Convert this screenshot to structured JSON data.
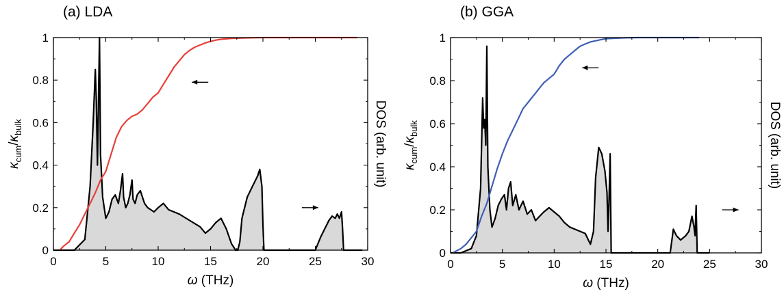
{
  "chart_data": [
    {
      "type": "line",
      "title": "(a) LDA",
      "xlabel": {
        "symbol": "ω",
        "unit": " (THz)"
      },
      "ylabel_left": {
        "k1": "κ",
        "s1": "cum",
        "mid": "/",
        "k2": "κ",
        "s2": "bulk"
      },
      "ylabel_right": "DOS (arb. unit)",
      "xlim": [
        0,
        30
      ],
      "ylim": [
        0,
        1
      ],
      "xticks": [
        "0",
        "5",
        "10",
        "15",
        "20",
        "25",
        "30"
      ],
      "yticks": [
        "0",
        "0.2",
        "0.4",
        "0.6",
        "0.8",
        "1"
      ],
      "grid": false,
      "arrows": [
        {
          "direction": "left",
          "x": 14.0,
          "y": 0.79
        },
        {
          "direction": "right",
          "x": 24.5,
          "y": 0.2
        }
      ],
      "series": [
        {
          "role": "cumulative_thermal_conductivity",
          "color": "#e8403a",
          "x": [
            0.6,
            1.0,
            1.5,
            2.0,
            2.5,
            3.0,
            3.5,
            4.0,
            4.5,
            5.0,
            5.5,
            6.0,
            6.5,
            7.0,
            7.5,
            8.0,
            8.5,
            9.0,
            9.5,
            10.0,
            10.5,
            11.0,
            11.5,
            12.0,
            12.5,
            13.0,
            13.5,
            14.0,
            14.5,
            15.0,
            15.5,
            16.0,
            17.0,
            18.0,
            19.0,
            20.0,
            22.0,
            25.0,
            29.0
          ],
          "y": [
            0.0,
            0.02,
            0.04,
            0.08,
            0.12,
            0.17,
            0.22,
            0.27,
            0.33,
            0.37,
            0.45,
            0.53,
            0.58,
            0.61,
            0.63,
            0.64,
            0.66,
            0.69,
            0.72,
            0.74,
            0.78,
            0.82,
            0.86,
            0.89,
            0.92,
            0.94,
            0.955,
            0.965,
            0.975,
            0.982,
            0.988,
            0.992,
            0.996,
            0.998,
            0.999,
            1.0,
            1.0,
            1.0,
            1.0
          ]
        },
        {
          "role": "phonon_dos",
          "color": "#000000",
          "fill": "#d9d9d9",
          "x": [
            0,
            2.0,
            3.0,
            3.5,
            3.8,
            4.0,
            4.1,
            4.2,
            4.3,
            4.4,
            4.5,
            4.7,
            5.0,
            5.3,
            5.6,
            5.9,
            6.2,
            6.4,
            6.6,
            6.7,
            6.9,
            7.1,
            7.3,
            7.5,
            7.6,
            7.8,
            8.0,
            8.3,
            8.5,
            8.7,
            9.0,
            9.3,
            9.6,
            10.0,
            10.5,
            11.0,
            11.5,
            12.0,
            13.0,
            14.0,
            14.5,
            15.0,
            15.5,
            16.0,
            16.5,
            17.0,
            17.4,
            17.6,
            17.8,
            18.0,
            18.5,
            19.0,
            19.5,
            19.7,
            19.9,
            20.0,
            20.1,
            25.0,
            25.5,
            26.0,
            26.3,
            26.6,
            26.9,
            27.1,
            27.3,
            27.5,
            27.6,
            27.7,
            29.5
          ],
          "y": [
            0,
            0.0,
            0.05,
            0.3,
            0.6,
            0.85,
            0.7,
            0.4,
            0.7,
            1.0,
            0.45,
            0.25,
            0.15,
            0.18,
            0.24,
            0.26,
            0.22,
            0.28,
            0.36,
            0.25,
            0.2,
            0.22,
            0.26,
            0.33,
            0.24,
            0.22,
            0.26,
            0.28,
            0.25,
            0.22,
            0.2,
            0.19,
            0.18,
            0.2,
            0.22,
            0.19,
            0.18,
            0.17,
            0.14,
            0.11,
            0.08,
            0.1,
            0.13,
            0.15,
            0.1,
            0.03,
            0.0,
            0.0,
            0.04,
            0.15,
            0.25,
            0.3,
            0.35,
            0.38,
            0.3,
            0.12,
            0.0,
            0.0,
            0.06,
            0.11,
            0.14,
            0.16,
            0.15,
            0.17,
            0.15,
            0.18,
            0.1,
            0.0,
            0.0
          ]
        }
      ]
    },
    {
      "type": "line",
      "title": "(b) GGA",
      "xlabel": {
        "symbol": "ω",
        "unit": " (THz)"
      },
      "ylabel_left": {
        "k1": "κ",
        "s1": "cum",
        "mid": "/",
        "k2": "κ",
        "s2": "bulk"
      },
      "ylabel_right": "DOS (arb. unit)",
      "xlim": [
        0,
        30
      ],
      "ylim": [
        0,
        1
      ],
      "xticks": [
        "0",
        "5",
        "10",
        "15",
        "20",
        "25",
        "30"
      ],
      "yticks": [
        "0",
        "0.2",
        "0.4",
        "0.6",
        "0.8",
        "1"
      ],
      "grid": false,
      "arrows": [
        {
          "direction": "left",
          "x": 13.5,
          "y": 0.86
        },
        {
          "direction": "right",
          "x": 27.0,
          "y": 0.2
        }
      ],
      "series": [
        {
          "role": "cumulative_thermal_conductivity",
          "color": "#3f5fb5",
          "x": [
            0.2,
            1.0,
            1.5,
            2.0,
            2.5,
            3.0,
            3.5,
            4.0,
            4.5,
            5.0,
            5.5,
            6.0,
            6.5,
            7.0,
            7.5,
            8.0,
            8.5,
            9.0,
            9.5,
            10.0,
            10.5,
            11.0,
            11.5,
            12.0,
            12.5,
            13.0,
            13.5,
            14.0,
            14.5,
            15.0,
            16.0,
            17.0,
            18.0,
            20.0,
            22.0,
            24.0
          ],
          "y": [
            0.0,
            0.02,
            0.04,
            0.07,
            0.1,
            0.17,
            0.23,
            0.31,
            0.39,
            0.46,
            0.52,
            0.57,
            0.62,
            0.67,
            0.7,
            0.73,
            0.76,
            0.79,
            0.81,
            0.83,
            0.87,
            0.9,
            0.92,
            0.94,
            0.96,
            0.97,
            0.98,
            0.985,
            0.99,
            0.995,
            0.997,
            0.999,
            1.0,
            1.0,
            1.0,
            1.0
          ]
        },
        {
          "role": "phonon_dos",
          "color": "#000000",
          "fill": "#d9d9d9",
          "x": [
            0,
            1.0,
            2.0,
            2.5,
            2.9,
            3.1,
            3.2,
            3.3,
            3.4,
            3.5,
            3.6,
            3.8,
            4.0,
            4.3,
            4.6,
            4.9,
            5.2,
            5.4,
            5.6,
            5.8,
            6.0,
            6.3,
            6.6,
            7.0,
            7.4,
            7.8,
            8.2,
            8.6,
            9.0,
            9.5,
            10.0,
            10.5,
            11.0,
            11.5,
            12.0,
            12.5,
            13.0,
            13.5,
            13.8,
            14.0,
            14.3,
            14.6,
            14.9,
            15.1,
            15.2,
            15.3,
            15.4,
            15.5,
            21.2,
            21.5,
            21.8,
            22.2,
            22.7,
            23.0,
            23.3,
            23.5,
            23.6,
            23.7,
            23.8,
            25.0
          ],
          "y": [
            0,
            0.0,
            0.02,
            0.08,
            0.3,
            0.72,
            0.58,
            0.62,
            0.5,
            0.96,
            0.4,
            0.2,
            0.12,
            0.16,
            0.22,
            0.25,
            0.27,
            0.2,
            0.3,
            0.33,
            0.22,
            0.27,
            0.2,
            0.24,
            0.18,
            0.2,
            0.15,
            0.17,
            0.19,
            0.21,
            0.19,
            0.17,
            0.14,
            0.12,
            0.11,
            0.1,
            0.09,
            0.04,
            0.1,
            0.35,
            0.49,
            0.46,
            0.38,
            0.28,
            0.1,
            0.25,
            0.46,
            0.0,
            0.0,
            0.11,
            0.08,
            0.06,
            0.08,
            0.1,
            0.17,
            0.12,
            0.08,
            0.22,
            0.0,
            0.0
          ]
        }
      ]
    }
  ]
}
